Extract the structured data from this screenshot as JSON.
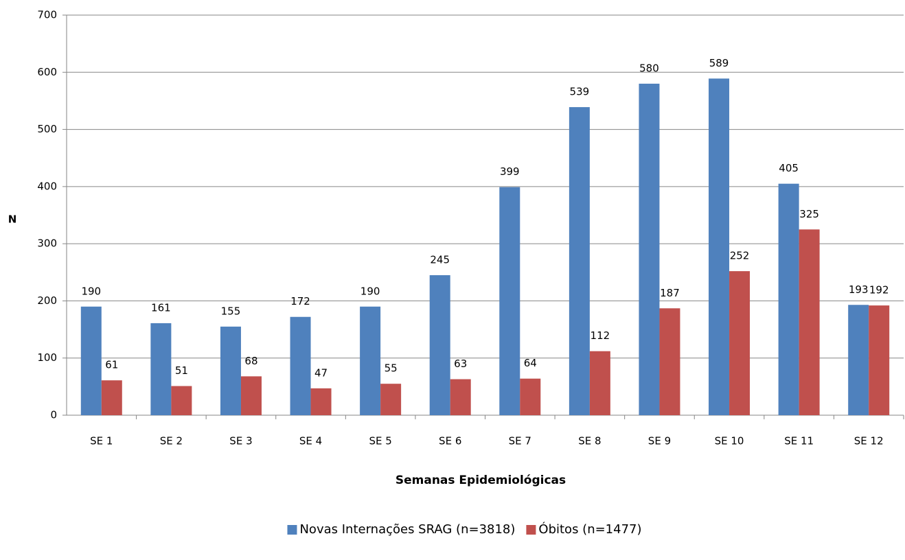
{
  "chart_data": {
    "type": "bar",
    "y_label": "N",
    "x_label": "Semanas Epidemiológicas",
    "categories": [
      "SE 1",
      "SE 2",
      "SE 3",
      "SE 4",
      "SE 5",
      "SE 6",
      "SE 7",
      "SE 8",
      "SE 9",
      "SE 10",
      "SE 11",
      "SE 12"
    ],
    "series": [
      {
        "name": "Novas Internações SRAG (n=3818)",
        "color": "#4f81bd",
        "values": [
          190,
          161,
          155,
          172,
          190,
          245,
          399,
          539,
          580,
          589,
          405,
          193
        ]
      },
      {
        "name": "Óbitos (n=1477)",
        "color": "#c0504d",
        "values": [
          61,
          51,
          68,
          47,
          55,
          63,
          64,
          112,
          187,
          252,
          325,
          192
        ]
      }
    ],
    "ylim": [
      0,
      700
    ],
    "yticks": [
      0,
      100,
      200,
      300,
      400,
      500,
      600,
      700
    ],
    "grid": true,
    "legend": "bottom"
  }
}
